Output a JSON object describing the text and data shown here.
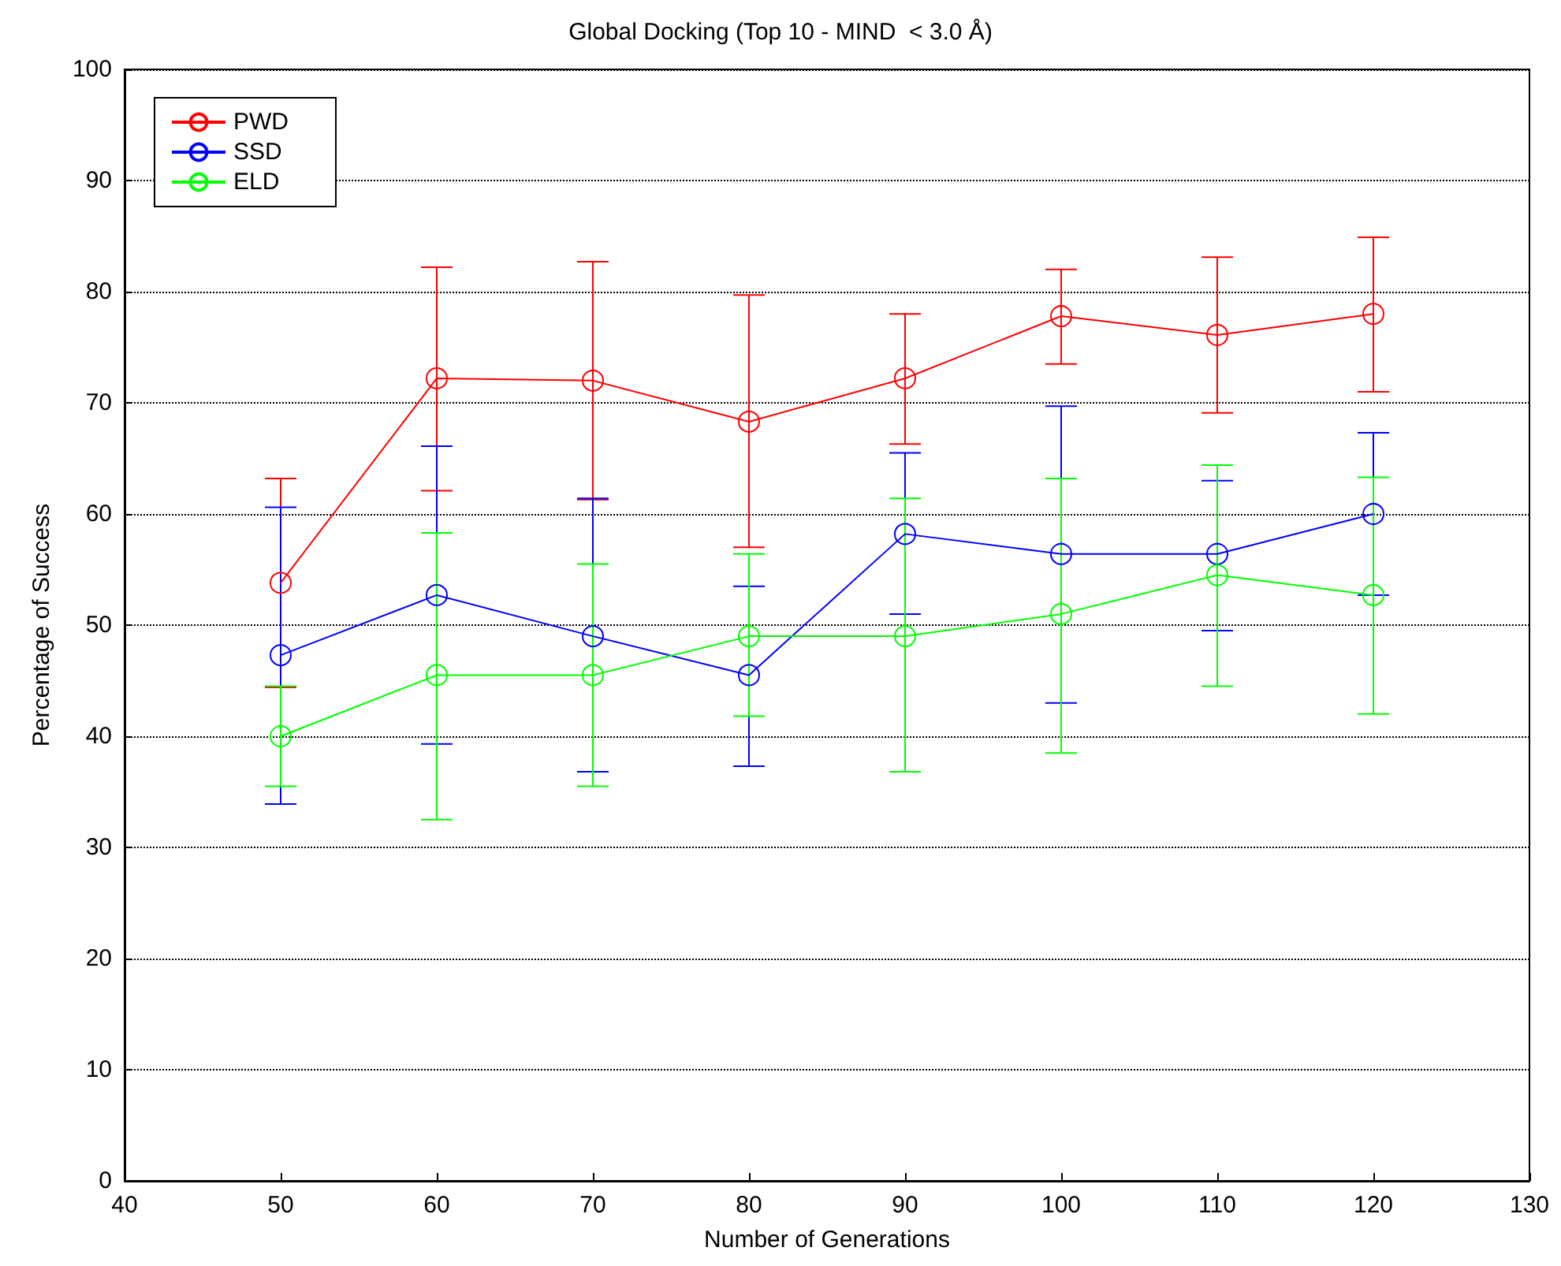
{
  "chart_data": {
    "type": "line",
    "title": "Global Docking (Top 10 - MIND  < 3.0 Å)",
    "xlabel": "Number of Generations",
    "ylabel": "Percentage of Success",
    "x": [
      50,
      60,
      70,
      80,
      90,
      100,
      110,
      120
    ],
    "series": [
      {
        "name": "PWD",
        "color": "#ff0000",
        "values": [
          53.8,
          72.2,
          72.0,
          68.3,
          72.2,
          77.8,
          76.1,
          78.0
        ],
        "errors": [
          [
            44.4,
            63.2
          ],
          [
            62.1,
            82.2
          ],
          [
            61.3,
            82.7
          ],
          [
            57.0,
            79.7
          ],
          [
            66.3,
            78.0
          ],
          [
            73.5,
            82.0
          ],
          [
            69.1,
            83.1
          ],
          [
            71.0,
            84.9
          ]
        ]
      },
      {
        "name": "SSD",
        "color": "#0000ff",
        "values": [
          47.3,
          52.7,
          49.0,
          45.5,
          58.2,
          56.4,
          56.4,
          60.0
        ],
        "errors": [
          [
            33.9,
            60.6
          ],
          [
            39.3,
            66.1
          ],
          [
            36.8,
            61.4
          ],
          [
            37.3,
            53.5
          ],
          [
            51.0,
            65.5
          ],
          [
            43.0,
            69.7
          ],
          [
            49.5,
            63.0
          ],
          [
            52.7,
            67.3
          ]
        ]
      },
      {
        "name": "ELD",
        "color": "#00ff00",
        "values": [
          40.0,
          45.5,
          45.5,
          49.0,
          49.0,
          51.0,
          54.5,
          52.7
        ],
        "errors": [
          [
            35.5,
            44.5
          ],
          [
            32.5,
            58.3
          ],
          [
            35.5,
            55.5
          ],
          [
            41.8,
            56.4
          ],
          [
            36.8,
            61.4
          ],
          [
            38.5,
            63.2
          ],
          [
            44.5,
            64.4
          ],
          [
            42.0,
            63.3
          ]
        ]
      }
    ],
    "xlim": [
      40,
      130
    ],
    "xticks": [
      40,
      50,
      60,
      70,
      80,
      90,
      100,
      110,
      120,
      130
    ],
    "ylim": [
      0,
      100
    ],
    "yticks": [
      0,
      10,
      20,
      30,
      40,
      50,
      60,
      70,
      80,
      90,
      100
    ],
    "grid": "y",
    "legend": "top left",
    "marker": "circle",
    "line_style": "solid"
  }
}
